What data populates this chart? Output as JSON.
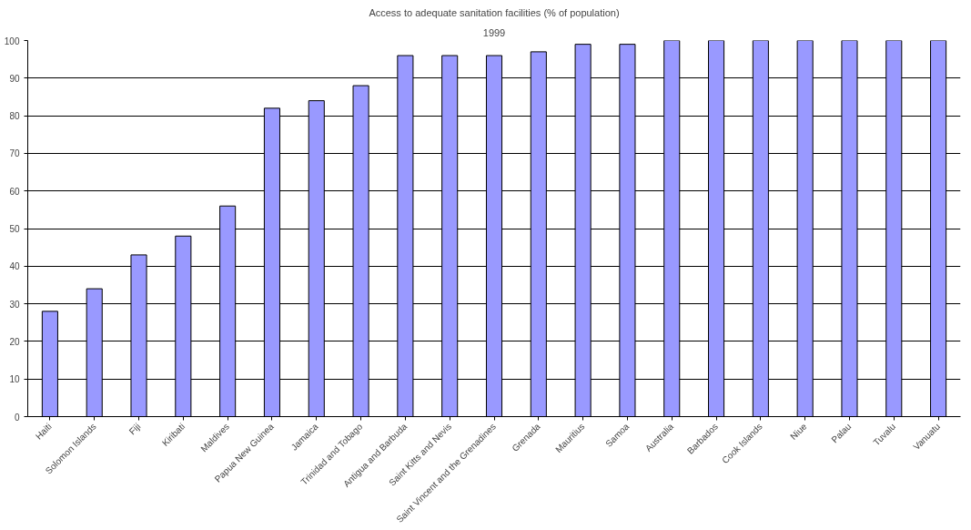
{
  "chart_data": {
    "type": "bar",
    "title": "Access to adequate sanitation facilities (% of population)",
    "subtitle": "1999",
    "categories": [
      "Haiti",
      "Solomon Islands",
      "Fiji",
      "Kiribati",
      "Maldives",
      "Papua New Guinea",
      "Jamaica",
      "Trinidad and Tobago",
      "Antigua and Barbuda",
      "Saint Kitts and Nevis",
      "Saint Vincent and the Grenadines",
      "Grenada",
      "Mauritius",
      "Samoa",
      "Australia",
      "Barbados",
      "Cook Islands",
      "Niue",
      "Palau",
      "Tuvalu",
      "Vanuatu"
    ],
    "values": [
      28,
      34,
      43,
      48,
      56,
      82,
      84,
      88,
      96,
      96,
      96,
      97,
      99,
      99,
      100,
      100,
      100,
      100,
      100,
      100,
      100
    ],
    "color": "#9999ff",
    "ylim": [
      0,
      100
    ],
    "yticks": [
      0,
      10,
      20,
      30,
      40,
      50,
      60,
      70,
      80,
      90,
      100
    ],
    "grid": "y"
  }
}
